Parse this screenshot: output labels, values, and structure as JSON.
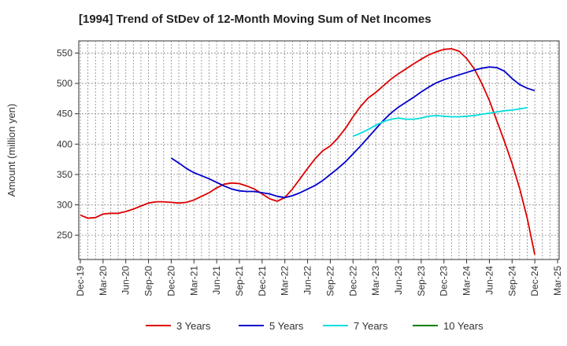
{
  "chart_data": {
    "type": "line",
    "title": "[1994]  Trend of StDev of 12-Month Moving Sum of Net Incomes",
    "xlabel": "",
    "ylabel": "Amount (million yen)",
    "ylim": [
      210,
      570
    ],
    "yticks": [
      250,
      300,
      350,
      400,
      450,
      500,
      550
    ],
    "xticks": [
      "Dec-19",
      "Mar-20",
      "Jun-20",
      "Sep-20",
      "Dec-20",
      "Mar-21",
      "Jun-21",
      "Sep-21",
      "Dec-21",
      "Mar-22",
      "Jun-22",
      "Sep-22",
      "Dec-22",
      "Mar-23",
      "Jun-23",
      "Sep-23",
      "Dec-23",
      "Mar-24",
      "Jun-24",
      "Sep-24",
      "Dec-24",
      "Mar-25"
    ],
    "grid": true,
    "legend_position": "bottom",
    "series": [
      {
        "name": "3 Years",
        "color": "#dd0000",
        "start_index": 0,
        "values": [
          283,
          278,
          279,
          285,
          286,
          286,
          289,
          293,
          298,
          303,
          305,
          305,
          304,
          303,
          304,
          308,
          314,
          320,
          328,
          334,
          336,
          335,
          331,
          326,
          318,
          310,
          306,
          312,
          326,
          343,
          360,
          376,
          389,
          397,
          410,
          426,
          445,
          462,
          476,
          485,
          496,
          507,
          516,
          524,
          532,
          540,
          547,
          552,
          556,
          557,
          553,
          541,
          524,
          500,
          472,
          438,
          404,
          368,
          327,
          278,
          218
        ]
      },
      {
        "name": "5 Years",
        "color": "#0000cc",
        "start_index": 12,
        "values": [
          377,
          369,
          360,
          353,
          348,
          343,
          337,
          331,
          326,
          323,
          322,
          322,
          320,
          318,
          314,
          312,
          315,
          320,
          326,
          332,
          340,
          350,
          360,
          371,
          384,
          397,
          411,
          425,
          439,
          451,
          461,
          469,
          477,
          486,
          494,
          501,
          506,
          510,
          514,
          518,
          522,
          525,
          527,
          526,
          520,
          508,
          498,
          492,
          488
        ]
      },
      {
        "name": "7 Years",
        "color": "#00dddd",
        "start_index": 36,
        "values": [
          413,
          418,
          424,
          431,
          437,
          441,
          443,
          441,
          441,
          443,
          446,
          447,
          446,
          445,
          445,
          446,
          447,
          449,
          451,
          453,
          455,
          456,
          458,
          460
        ]
      },
      {
        "name": "10 Years",
        "color": "#008000",
        "start_index": 0,
        "values": []
      }
    ]
  }
}
